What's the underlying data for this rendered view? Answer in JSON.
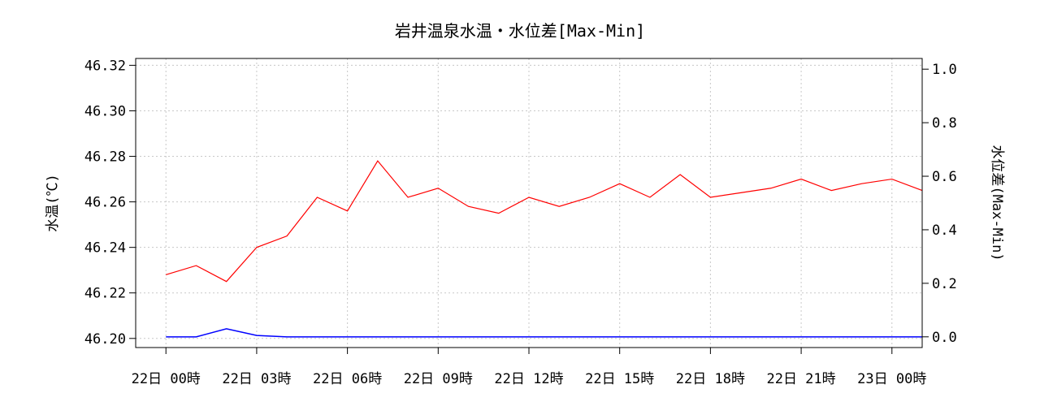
{
  "chart_data": {
    "type": "line",
    "title": "岩井温泉水温・水位差[Max-Min]",
    "ylabel_left": "水温(℃)",
    "ylabel_right": "水位差(Max-Min)",
    "x_ticks": [
      "22日 00時",
      "22日 03時",
      "22日 06時",
      "22日 09時",
      "22日 12時",
      "22日 15時",
      "22日 18時",
      "22日 21時",
      "23日 00時"
    ],
    "y_left_ticks": [
      "46.20",
      "46.22",
      "46.24",
      "46.26",
      "46.28",
      "46.30",
      "46.32"
    ],
    "y_right_ticks": [
      "0.0",
      "0.2",
      "0.4",
      "0.6",
      "0.8",
      "1.0"
    ],
    "y_left_lim": [
      46.196,
      46.323
    ],
    "y_right_lim": [
      -0.04,
      1.04
    ],
    "x_lim_hours": [
      -1,
      25
    ],
    "grid": true,
    "series": [
      {
        "color": "#ff0000",
        "axis": "left",
        "hour_step": 1,
        "values": [
          46.228,
          46.232,
          46.225,
          46.24,
          46.245,
          46.262,
          46.256,
          46.278,
          46.262,
          46.266,
          46.258,
          46.255,
          46.262,
          46.258,
          46.262,
          46.268,
          46.262,
          46.272,
          46.262,
          46.264,
          46.266,
          46.27,
          46.265,
          46.268,
          46.27,
          46.265
        ]
      },
      {
        "color": "#0000ff",
        "axis": "right",
        "hour_step": 1,
        "values": [
          0.0,
          0.0,
          0.03,
          0.005,
          0.0,
          0.0,
          0.0,
          0.0,
          0.0,
          0.0,
          0.0,
          0.0,
          0.0,
          0.0,
          0.0,
          0.0,
          0.0,
          0.0,
          0.0,
          0.0,
          0.0,
          0.0,
          0.0,
          0.0,
          0.0,
          0.0
        ]
      }
    ]
  }
}
